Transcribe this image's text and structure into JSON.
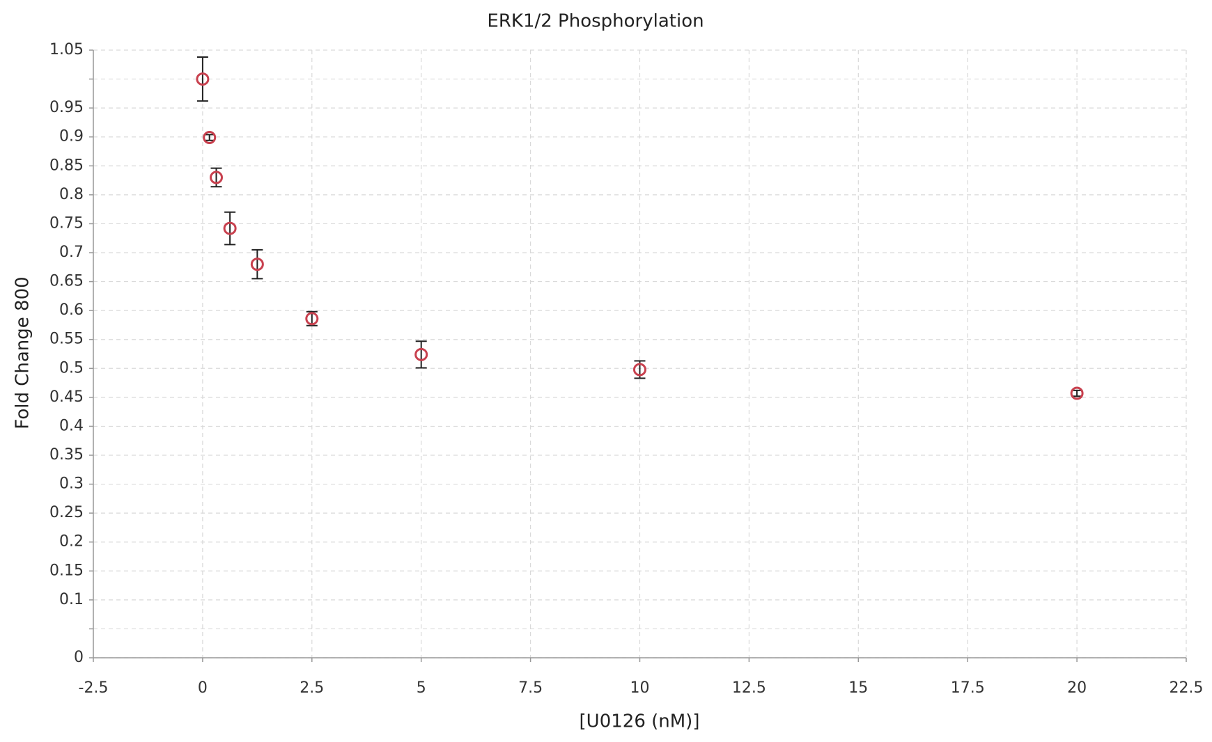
{
  "chart_data": {
    "type": "scatter",
    "title": "ERK1/2 Phosphorylation",
    "x_label": "[U0126 (nM)]",
    "y_label": "Fold Change 800",
    "x": [
      0,
      0.15625,
      0.3125,
      0.625,
      1.25,
      2.5,
      5,
      10,
      20
    ],
    "series": [
      {
        "color": "#c8404e",
        "error_color": "#222222",
        "values": [
          1.0,
          0.899,
          0.83,
          0.742,
          0.68,
          0.586,
          0.524,
          0.498,
          0.457
        ],
        "errors": [
          0.038,
          0.005,
          0.016,
          0.028,
          0.025,
          0.012,
          0.023,
          0.015,
          0.005
        ]
      }
    ],
    "xlim": [
      -2.5,
      22.5
    ],
    "ylim": [
      0,
      1.05
    ],
    "xticks": [
      -2.5,
      0,
      2.5,
      5,
      7.5,
      10,
      12.5,
      15,
      17.5,
      20,
      22.5
    ],
    "yticks": [
      0,
      0.1,
      0.15,
      0.2,
      0.25,
      0.3,
      0.35,
      0.4,
      0.45,
      0.5,
      0.55,
      0.6,
      0.65,
      0.7,
      0.75,
      0.8,
      0.85,
      0.9,
      0.95,
      1.05
    ],
    "minor_yticks": [
      0.05,
      1.0
    ],
    "grid": true
  }
}
